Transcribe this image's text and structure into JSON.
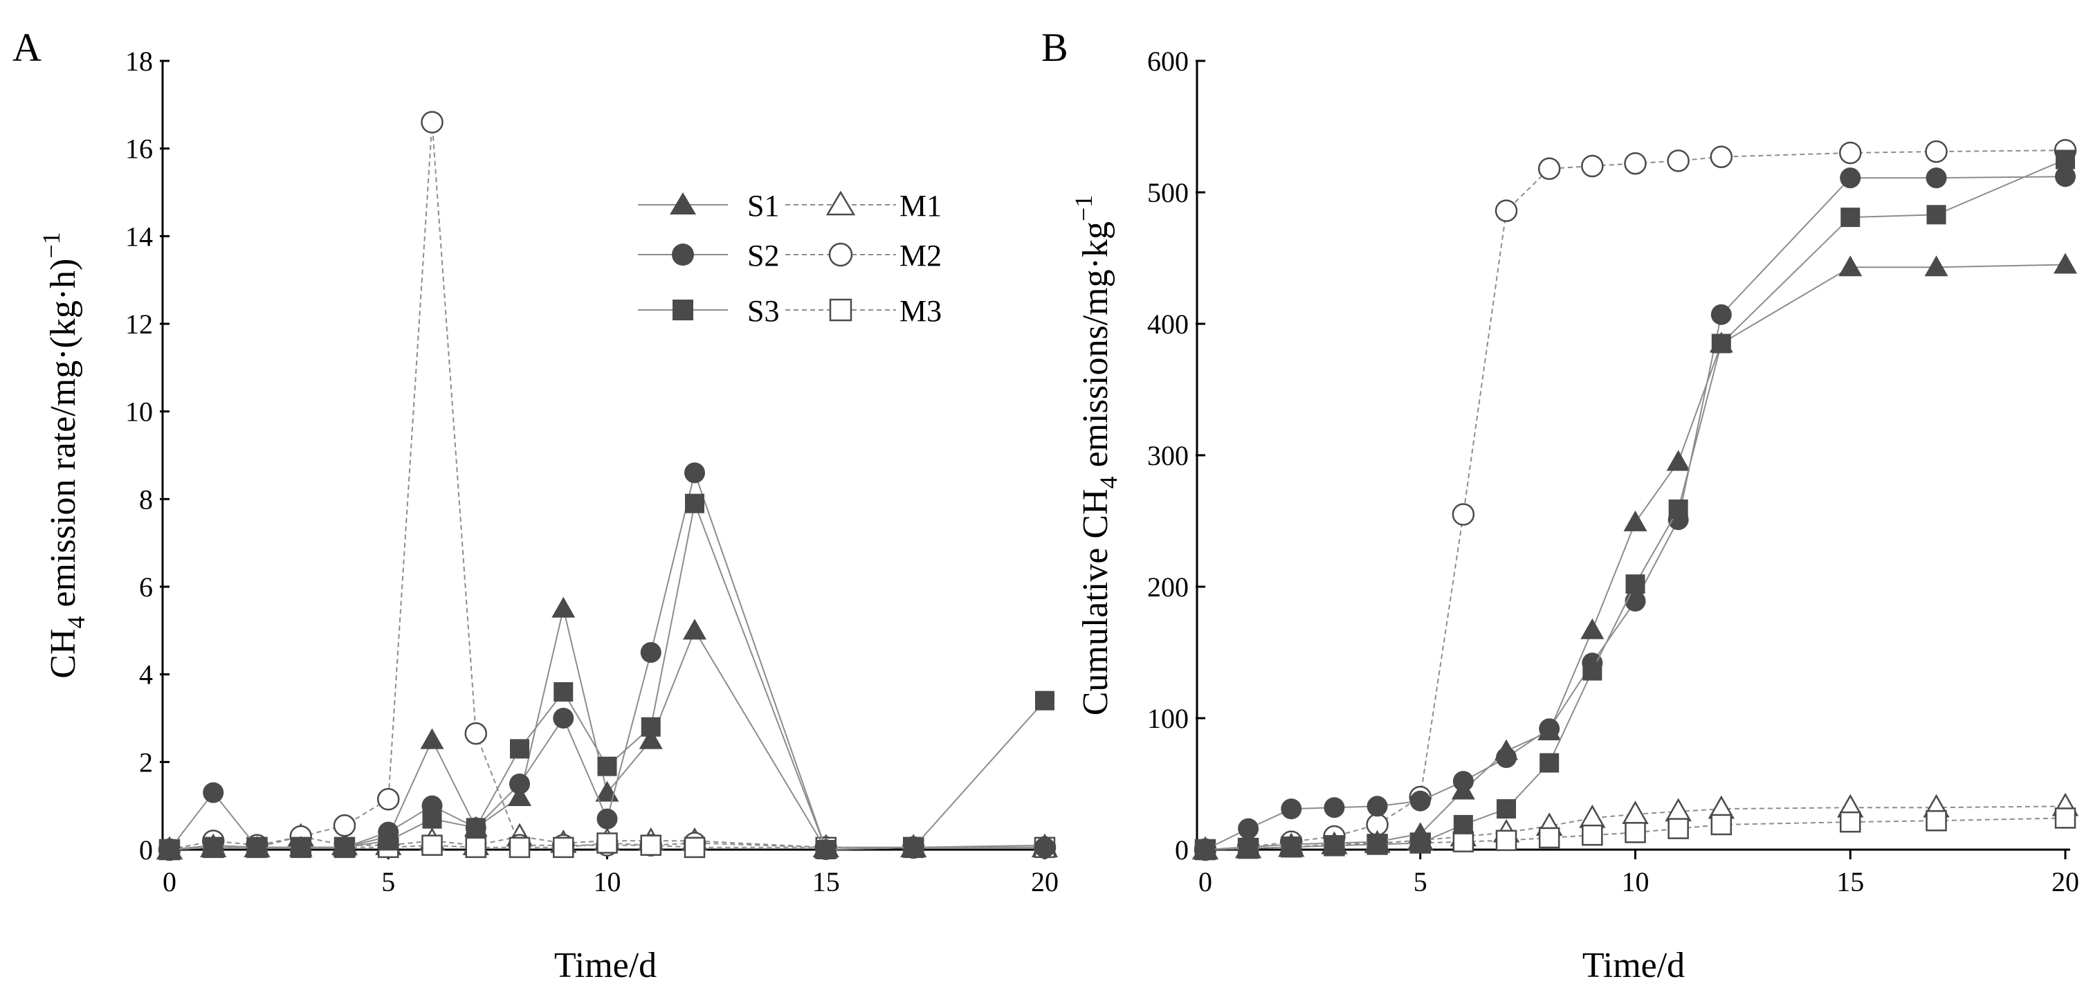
{
  "colors": {
    "solid": "#4a4a4a",
    "line_solid": "#8c8c8c",
    "line_dashed": "#8c8c8c",
    "hollow_fill": "#ffffff"
  },
  "legend": {
    "items": [
      {
        "key": "S1",
        "marker": "triangle",
        "style": "solid"
      },
      {
        "key": "M1",
        "marker": "triangle",
        "style": "hollow"
      },
      {
        "key": "S2",
        "marker": "circle",
        "style": "solid"
      },
      {
        "key": "M2",
        "marker": "circle",
        "style": "hollow"
      },
      {
        "key": "S3",
        "marker": "square",
        "style": "solid"
      },
      {
        "key": "M3",
        "marker": "square",
        "style": "hollow"
      }
    ]
  },
  "chart_data": [
    {
      "panel": "A",
      "type": "line",
      "xlabel": "Time/d",
      "ylabel_main": "CH",
      "ylabel_sub": "4",
      "ylabel_rest": " emission rate/mg·(kg·h)",
      "ylabel_sup": "−1",
      "xlim": [
        0,
        20
      ],
      "ylim": [
        0,
        18
      ],
      "xticks": [
        "0",
        "5",
        "10",
        "15",
        "20"
      ],
      "yticks": [
        "0",
        "2",
        "4",
        "6",
        "8",
        "10",
        "12",
        "14",
        "16",
        "18"
      ],
      "series": [
        {
          "name": "S1",
          "marker": "triangle",
          "style": "solid",
          "x": [
            0,
            1,
            2,
            3,
            4,
            5,
            6,
            7,
            8,
            9,
            10,
            11,
            12,
            15,
            17,
            20
          ],
          "y": [
            0,
            0.1,
            0.05,
            0.05,
            0.05,
            0.3,
            2.5,
            0.5,
            1.2,
            5.5,
            1.3,
            2.5,
            5.0,
            0,
            0.05,
            0.1
          ]
        },
        {
          "name": "S2",
          "marker": "circle",
          "style": "solid",
          "x": [
            0,
            1,
            2,
            3,
            4,
            5,
            6,
            7,
            8,
            9,
            10,
            11,
            12,
            15,
            17,
            20
          ],
          "y": [
            0,
            1.3,
            0.05,
            0.05,
            0.05,
            0.4,
            1.0,
            0.5,
            1.5,
            3.0,
            0.7,
            4.5,
            8.6,
            0,
            0.05,
            0.05
          ]
        },
        {
          "name": "S3",
          "marker": "square",
          "style": "solid",
          "x": [
            0,
            1,
            2,
            3,
            4,
            5,
            6,
            7,
            8,
            9,
            10,
            11,
            12,
            15,
            17,
            20
          ],
          "y": [
            0,
            0.05,
            0.05,
            0.05,
            0.05,
            0.2,
            0.7,
            0.5,
            2.3,
            3.6,
            1.9,
            2.8,
            7.9,
            0,
            0.05,
            3.4
          ]
        },
        {
          "name": "M1",
          "marker": "triangle",
          "style": "hollow",
          "x": [
            0,
            1,
            2,
            3,
            4,
            5,
            6,
            7,
            8,
            9,
            10,
            11,
            12,
            15,
            17,
            20
          ],
          "y": [
            0,
            0.05,
            0.05,
            0.3,
            0.1,
            0.1,
            0.2,
            0.1,
            0.3,
            0.15,
            0.2,
            0.2,
            0.2,
            0.05,
            0.05,
            0.05
          ]
        },
        {
          "name": "M2",
          "marker": "circle",
          "style": "hollow",
          "x": [
            0,
            1,
            2,
            3,
            4,
            5,
            6,
            7,
            8,
            9,
            10,
            11,
            12,
            15,
            17,
            20
          ],
          "y": [
            0,
            0.2,
            0.1,
            0.3,
            0.55,
            1.15,
            16.6,
            2.65,
            0.1,
            0.1,
            0.1,
            0.1,
            0.15,
            0.05,
            0.05,
            0.05
          ]
        },
        {
          "name": "M3",
          "marker": "square",
          "style": "hollow",
          "x": [
            0,
            1,
            2,
            3,
            4,
            5,
            6,
            7,
            8,
            9,
            10,
            11,
            12,
            15,
            17,
            20
          ],
          "y": [
            0,
            0.05,
            0.05,
            0.05,
            0.05,
            0.05,
            0.1,
            0.05,
            0.05,
            0.05,
            0.15,
            0.1,
            0.05,
            0.05,
            0.05,
            0.05
          ]
        }
      ]
    },
    {
      "panel": "B",
      "type": "line",
      "xlabel": "Time/d",
      "ylabel_main": "Cumulative CH",
      "ylabel_sub": "4",
      "ylabel_rest": " emissions/mg·kg",
      "ylabel_sup": "−1",
      "xlim": [
        0,
        20
      ],
      "ylim": [
        0,
        600
      ],
      "xticks": [
        "0",
        "5",
        "10",
        "15",
        "20"
      ],
      "yticks": [
        "0",
        "100",
        "200",
        "300",
        "400",
        "500",
        "600"
      ],
      "series": [
        {
          "name": "S1",
          "marker": "triangle",
          "style": "solid",
          "x": [
            0,
            1,
            2,
            3,
            4,
            5,
            6,
            7,
            8,
            9,
            10,
            11,
            12,
            15,
            17,
            20
          ],
          "y": [
            0,
            2,
            4,
            5,
            6,
            12,
            45,
            75,
            90,
            167,
            249,
            295,
            385,
            443,
            443,
            445
          ]
        },
        {
          "name": "S2",
          "marker": "circle",
          "style": "solid",
          "x": [
            0,
            1,
            2,
            3,
            4,
            5,
            6,
            7,
            8,
            9,
            10,
            11,
            12,
            15,
            17,
            20
          ],
          "y": [
            0,
            16,
            31,
            32,
            33,
            37,
            52,
            70,
            92,
            142,
            189,
            251,
            407,
            511,
            511,
            512
          ]
        },
        {
          "name": "S3",
          "marker": "square",
          "style": "solid",
          "x": [
            0,
            1,
            2,
            3,
            4,
            5,
            6,
            7,
            8,
            9,
            10,
            11,
            12,
            15,
            17,
            20
          ],
          "y": [
            0,
            1,
            2,
            3,
            4,
            5,
            19,
            31,
            66,
            136,
            202,
            259,
            385,
            481,
            483,
            525
          ]
        },
        {
          "name": "M1",
          "marker": "triangle",
          "style": "hollow",
          "x": [
            0,
            1,
            2,
            3,
            4,
            5,
            6,
            7,
            8,
            9,
            10,
            11,
            12,
            15,
            17,
            20
          ],
          "y": [
            0,
            1,
            2,
            4,
            5,
            7,
            10,
            13,
            18,
            24,
            27,
            29,
            31,
            32,
            32,
            33
          ]
        },
        {
          "name": "M2",
          "marker": "circle",
          "style": "hollow",
          "x": [
            0,
            1,
            2,
            3,
            4,
            5,
            6,
            7,
            8,
            9,
            10,
            11,
            12,
            15,
            17,
            20
          ],
          "y": [
            0,
            2,
            6,
            10,
            19,
            40,
            255,
            486,
            518,
            520,
            522,
            524,
            527,
            530,
            531,
            532
          ]
        },
        {
          "name": "M3",
          "marker": "square",
          "style": "hollow",
          "x": [
            0,
            1,
            2,
            3,
            4,
            5,
            6,
            7,
            8,
            9,
            10,
            11,
            12,
            15,
            17,
            20
          ],
          "y": [
            0,
            1,
            2,
            3,
            4,
            5,
            6,
            7,
            9,
            11,
            13,
            16,
            19,
            21,
            22,
            24
          ]
        }
      ]
    }
  ]
}
